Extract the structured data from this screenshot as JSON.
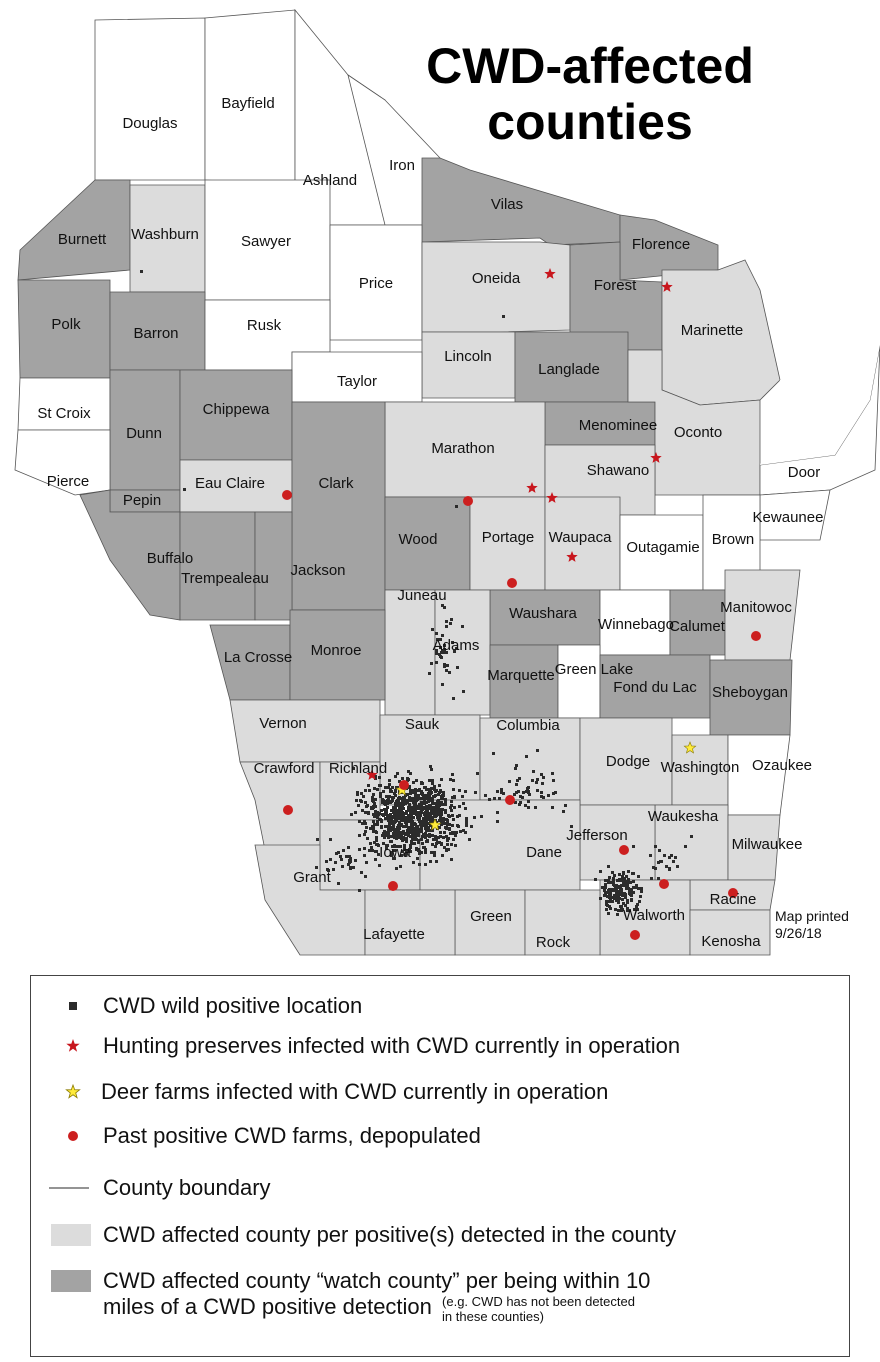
{
  "title_line1": "CWD-affected",
  "title_line2": "counties",
  "print_note_line1": "Map printed",
  "print_note_line2": "9/26/18",
  "colors": {
    "affected": "#dcdcdc",
    "watch": "#a3a3a3",
    "unaffected": "#ffffff",
    "boundary": "#555555",
    "wild_positive": "#2b2b2b",
    "hunting_preserve": "#c8161d",
    "deer_farm": "#ffeb3b",
    "past_farm": "#cc1f1f"
  },
  "counties": [
    {
      "name": "Douglas",
      "status": "unaffected"
    },
    {
      "name": "Bayfield",
      "status": "unaffected"
    },
    {
      "name": "Ashland",
      "status": "unaffected"
    },
    {
      "name": "Iron",
      "status": "unaffected"
    },
    {
      "name": "Vilas",
      "status": "watch"
    },
    {
      "name": "Burnett",
      "status": "watch"
    },
    {
      "name": "Washburn",
      "status": "affected"
    },
    {
      "name": "Sawyer",
      "status": "unaffected"
    },
    {
      "name": "Price",
      "status": "unaffected"
    },
    {
      "name": "Oneida",
      "status": "affected"
    },
    {
      "name": "Florence",
      "status": "watch"
    },
    {
      "name": "Forest",
      "status": "watch"
    },
    {
      "name": "Marinette",
      "status": "affected"
    },
    {
      "name": "Polk",
      "status": "watch"
    },
    {
      "name": "Barron",
      "status": "watch"
    },
    {
      "name": "Rusk",
      "status": "unaffected"
    },
    {
      "name": "Lincoln",
      "status": "affected"
    },
    {
      "name": "Langlade",
      "status": "watch"
    },
    {
      "name": "Taylor",
      "status": "unaffected"
    },
    {
      "name": "St Croix",
      "status": "unaffected"
    },
    {
      "name": "Dunn",
      "status": "watch"
    },
    {
      "name": "Chippewa",
      "status": "watch"
    },
    {
      "name": "Menominee",
      "status": "watch"
    },
    {
      "name": "Oconto",
      "status": "affected"
    },
    {
      "name": "Marathon",
      "status": "affected"
    },
    {
      "name": "Shawano",
      "status": "affected"
    },
    {
      "name": "Door",
      "status": "unaffected"
    },
    {
      "name": "Pierce",
      "status": "unaffected"
    },
    {
      "name": "Pepin",
      "status": "watch"
    },
    {
      "name": "Eau Claire",
      "status": "affected"
    },
    {
      "name": "Clark",
      "status": "watch"
    },
    {
      "name": "Kewaunee",
      "status": "unaffected"
    },
    {
      "name": "Wood",
      "status": "watch"
    },
    {
      "name": "Portage",
      "status": "affected"
    },
    {
      "name": "Waupaca",
      "status": "affected"
    },
    {
      "name": "Outagamie",
      "status": "unaffected"
    },
    {
      "name": "Brown",
      "status": "unaffected"
    },
    {
      "name": "Buffalo",
      "status": "watch"
    },
    {
      "name": "Trempealeau",
      "status": "watch"
    },
    {
      "name": "Jackson",
      "status": "watch"
    },
    {
      "name": "Juneau",
      "status": "affected"
    },
    {
      "name": "Waushara",
      "status": "watch"
    },
    {
      "name": "Winnebago",
      "status": "unaffected"
    },
    {
      "name": "Calumet",
      "status": "watch"
    },
    {
      "name": "Manitowoc",
      "status": "affected"
    },
    {
      "name": "Adams",
      "status": "affected"
    },
    {
      "name": "La Crosse",
      "status": "watch"
    },
    {
      "name": "Monroe",
      "status": "watch"
    },
    {
      "name": "Marquette",
      "status": "watch"
    },
    {
      "name": "Green Lake",
      "status": "unaffected"
    },
    {
      "name": "Fond du Lac",
      "status": "watch"
    },
    {
      "name": "Sheboygan",
      "status": "watch"
    },
    {
      "name": "Vernon",
      "status": "affected"
    },
    {
      "name": "Sauk",
      "status": "affected"
    },
    {
      "name": "Columbia",
      "status": "affected"
    },
    {
      "name": "Dodge",
      "status": "affected"
    },
    {
      "name": "Washington",
      "status": "affected"
    },
    {
      "name": "Ozaukee",
      "status": "unaffected"
    },
    {
      "name": "Crawford",
      "status": "affected"
    },
    {
      "name": "Richland",
      "status": "affected"
    },
    {
      "name": "Waukesha",
      "status": "affected"
    },
    {
      "name": "Jefferson",
      "status": "affected"
    },
    {
      "name": "Milwaukee",
      "status": "affected"
    },
    {
      "name": "Iowa",
      "status": "affected"
    },
    {
      "name": "Dane",
      "status": "affected"
    },
    {
      "name": "Grant",
      "status": "affected"
    },
    {
      "name": "Racine",
      "status": "affected"
    },
    {
      "name": "Green",
      "status": "affected"
    },
    {
      "name": "Walworth",
      "status": "affected"
    },
    {
      "name": "Lafayette",
      "status": "affected"
    },
    {
      "name": "Rock",
      "status": "affected"
    },
    {
      "name": "Kenosha",
      "status": "affected"
    }
  ],
  "legend": {
    "wild_positive": "CWD wild positive location",
    "hunting_preserves": "Hunting preserves infected with CWD currently in operation",
    "deer_farms": "Deer farms infected with CWD currently in operation",
    "past_farms": "Past positive CWD farms, depopulated",
    "county_boundary": "County boundary",
    "affected_county": "CWD affected county per positive(s) detected in the county",
    "watch_county_line1": "CWD affected county “watch county” per being within 10",
    "watch_county_line2": "miles of a CWD positive detection",
    "watch_note_line1": "(e.g. CWD has not been detected",
    "watch_note_line2": "in these counties)"
  }
}
